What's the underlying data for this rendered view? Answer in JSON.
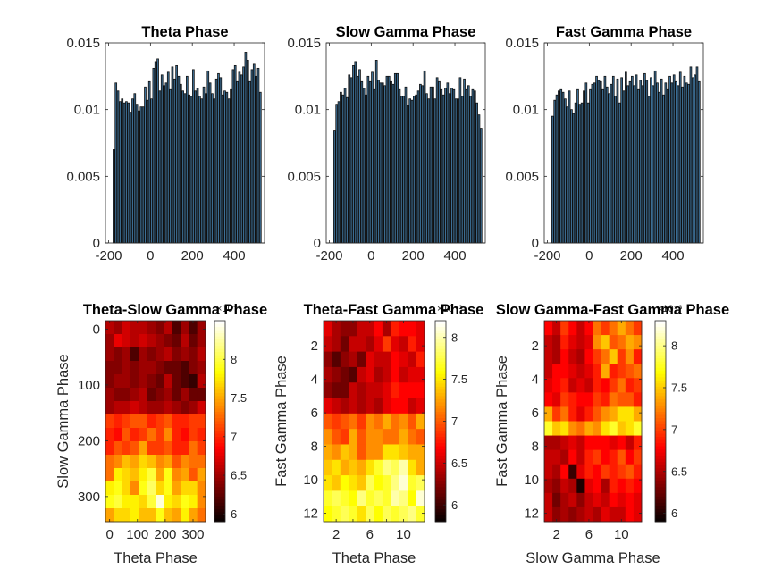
{
  "figure": {
    "background": "#ffffff"
  },
  "chart_data": [
    {
      "type": "bar",
      "title": "Theta Phase",
      "xlabel": "",
      "ylabel": "",
      "xlim": [
        -215,
        545
      ],
      "ylim": [
        0,
        0.015
      ],
      "xticks": [
        -200,
        0,
        200,
        400
      ],
      "yticks": [
        0,
        0.005,
        0.01,
        0.015
      ],
      "xtick_labels": [
        "-200",
        "0",
        "200",
        "400"
      ],
      "ytick_labels": [
        "0",
        "0.005",
        "0.01",
        "0.015"
      ],
      "bar_color": "#1f3f5f",
      "bar_edge": "#111111",
      "x": [
        -175,
        -165,
        -155,
        -145,
        -135,
        -125,
        -115,
        -105,
        -95,
        -85,
        -75,
        -65,
        -55,
        -45,
        -35,
        -25,
        -15,
        -5,
        5,
        15,
        25,
        35,
        45,
        55,
        65,
        75,
        85,
        95,
        105,
        115,
        125,
        135,
        145,
        155,
        165,
        175,
        185,
        195,
        205,
        215,
        225,
        235,
        245,
        255,
        265,
        275,
        285,
        295,
        305,
        315,
        325,
        335,
        345,
        355,
        365,
        375,
        385,
        395,
        405,
        415,
        425,
        435,
        445,
        455,
        465,
        475,
        485,
        495,
        505,
        515,
        525
      ],
      "values": [
        0.007,
        0.012,
        0.0114,
        0.0106,
        0.0108,
        0.0105,
        0.0106,
        0.0105,
        0.0098,
        0.0108,
        0.0112,
        0.0104,
        0.0099,
        0.0102,
        0.0102,
        0.0117,
        0.0107,
        0.0121,
        0.0108,
        0.0131,
        0.0136,
        0.0138,
        0.0114,
        0.0126,
        0.0118,
        0.012,
        0.0128,
        0.0115,
        0.0132,
        0.0123,
        0.0133,
        0.0125,
        0.0119,
        0.0114,
        0.0112,
        0.0125,
        0.0111,
        0.011,
        0.013,
        0.0114,
        0.0116,
        0.011,
        0.0108,
        0.0117,
        0.0112,
        0.0129,
        0.012,
        0.0112,
        0.0108,
        0.0123,
        0.0127,
        0.0124,
        0.0111,
        0.0114,
        0.0113,
        0.0108,
        0.0115,
        0.013,
        0.0133,
        0.0121,
        0.0128,
        0.0126,
        0.0132,
        0.0143,
        0.0137,
        0.0121,
        0.013,
        0.0134,
        0.0125,
        0.0131,
        0.0113
      ]
    },
    {
      "type": "bar",
      "title": "Slow Gamma Phase",
      "xlabel": "",
      "ylabel": "",
      "xlim": [
        -215,
        545
      ],
      "ylim": [
        0,
        0.015
      ],
      "xticks": [
        -200,
        0,
        200,
        400
      ],
      "yticks": [
        0,
        0.005,
        0.01,
        0.015
      ],
      "xtick_labels": [
        "-200",
        "0",
        "200",
        "400"
      ],
      "ytick_labels": [
        "0",
        "0.005",
        "0.01",
        "0.015"
      ],
      "bar_color": "#1f3f5f",
      "bar_edge": "#111111",
      "x": [
        -175,
        -165,
        -155,
        -145,
        -135,
        -125,
        -115,
        -105,
        -95,
        -85,
        -75,
        -65,
        -55,
        -45,
        -35,
        -25,
        -15,
        -5,
        5,
        15,
        25,
        35,
        45,
        55,
        65,
        75,
        85,
        95,
        105,
        115,
        125,
        135,
        145,
        155,
        165,
        175,
        185,
        195,
        205,
        215,
        225,
        235,
        245,
        255,
        265,
        275,
        285,
        295,
        305,
        315,
        325,
        335,
        345,
        355,
        365,
        375,
        385,
        395,
        405,
        415,
        425,
        435,
        445,
        455,
        465,
        475,
        485,
        495,
        505,
        515,
        525
      ],
      "values": [
        0.0084,
        0.0104,
        0.0106,
        0.0113,
        0.0111,
        0.0116,
        0.0109,
        0.0126,
        0.0124,
        0.0133,
        0.0136,
        0.0125,
        0.013,
        0.0121,
        0.0116,
        0.0111,
        0.0125,
        0.0121,
        0.0128,
        0.0115,
        0.0137,
        0.0122,
        0.012,
        0.012,
        0.0118,
        0.0125,
        0.0125,
        0.0121,
        0.0119,
        0.0127,
        0.0127,
        0.0115,
        0.011,
        0.011,
        0.0117,
        0.0103,
        0.0108,
        0.0107,
        0.011,
        0.0111,
        0.0114,
        0.0119,
        0.0118,
        0.0129,
        0.0112,
        0.0108,
        0.0117,
        0.0117,
        0.0108,
        0.0124,
        0.0121,
        0.0115,
        0.0111,
        0.0116,
        0.012,
        0.0112,
        0.0116,
        0.0115,
        0.0108,
        0.0108,
        0.0124,
        0.011,
        0.0123,
        0.0115,
        0.0118,
        0.011,
        0.0115,
        0.0114,
        0.0105,
        0.0096,
        0.0086
      ]
    },
    {
      "type": "bar",
      "title": "Fast Gamma Phase",
      "xlabel": "",
      "ylabel": "",
      "xlim": [
        -215,
        545
      ],
      "ylim": [
        0,
        0.015
      ],
      "xticks": [
        -200,
        0,
        200,
        400
      ],
      "yticks": [
        0,
        0.005,
        0.01,
        0.015
      ],
      "xtick_labels": [
        "-200",
        "0",
        "200",
        "400"
      ],
      "ytick_labels": [
        "0",
        "0.005",
        "0.01",
        "0.015"
      ],
      "bar_color": "#1f3f5f",
      "bar_edge": "#111111",
      "x": [
        -175,
        -165,
        -155,
        -145,
        -135,
        -125,
        -115,
        -105,
        -95,
        -85,
        -75,
        -65,
        -55,
        -45,
        -35,
        -25,
        -15,
        -5,
        5,
        15,
        25,
        35,
        45,
        55,
        65,
        75,
        85,
        95,
        105,
        115,
        125,
        135,
        145,
        155,
        165,
        175,
        185,
        195,
        205,
        215,
        225,
        235,
        245,
        255,
        265,
        275,
        285,
        295,
        305,
        315,
        325,
        335,
        345,
        355,
        365,
        375,
        385,
        395,
        405,
        415,
        425,
        435,
        445,
        455,
        465,
        475,
        485,
        495,
        505,
        515,
        525
      ],
      "values": [
        0.0095,
        0.0107,
        0.0111,
        0.0114,
        0.0115,
        0.0113,
        0.0108,
        0.0102,
        0.0114,
        0.01,
        0.0097,
        0.0105,
        0.0115,
        0.0104,
        0.0105,
        0.0114,
        0.012,
        0.0105,
        0.0115,
        0.0119,
        0.012,
        0.0125,
        0.0122,
        0.0121,
        0.0115,
        0.0125,
        0.0117,
        0.0112,
        0.0119,
        0.0125,
        0.011,
        0.0123,
        0.0105,
        0.0124,
        0.0114,
        0.0128,
        0.0118,
        0.0121,
        0.0125,
        0.0118,
        0.0126,
        0.0115,
        0.0122,
        0.0118,
        0.0127,
        0.0122,
        0.011,
        0.0124,
        0.0118,
        0.0129,
        0.012,
        0.0113,
        0.0123,
        0.0111,
        0.012,
        0.0115,
        0.0125,
        0.012,
        0.0126,
        0.0121,
        0.0118,
        0.0128,
        0.0117,
        0.0125,
        0.012,
        0.0119,
        0.0132,
        0.0124,
        0.0126,
        0.0132,
        0.0121
      ]
    },
    {
      "type": "heatmap",
      "title": "Theta-Slow Gamma Phase",
      "xlabel": "Theta Phase",
      "ylabel": "Slow Gamma Phase",
      "xlim": [
        -15,
        345
      ],
      "ylim": [
        -15,
        345
      ],
      "xticks": [
        0,
        100,
        200,
        300
      ],
      "yticks": [
        0,
        100,
        200,
        300
      ],
      "xtick_labels": [
        "0",
        "100",
        "200",
        "300"
      ],
      "ytick_labels": [
        "0",
        "100",
        "200",
        "300"
      ],
      "y_direction": "down",
      "colormap": "hot",
      "clim": [
        5.9,
        8.5
      ],
      "colorbar_ticks": [
        6,
        6.5,
        7,
        7.5,
        8
      ],
      "colorbar_labels": [
        "6",
        "6.5",
        "7",
        "7.5",
        "8"
      ],
      "colorbar_multiplier": "×10⁻³",
      "matrix": [
        [
          6.6,
          6.5,
          6.7,
          6.6,
          6.6,
          6.5,
          6.4,
          6.6,
          6.2,
          6.5,
          6.2,
          6.5
        ],
        [
          6.5,
          6.8,
          6.7,
          6.6,
          6.7,
          6.6,
          6.5,
          6.4,
          6.3,
          6.6,
          6.3,
          6.5
        ],
        [
          6.5,
          6.4,
          6.5,
          6.2,
          6.5,
          6.4,
          6.5,
          6.6,
          6.4,
          6.5,
          6.4,
          6.6
        ],
        [
          6.4,
          6.4,
          6.5,
          6.4,
          6.5,
          6.5,
          6.4,
          6.3,
          6.3,
          6.2,
          6.4,
          6.5
        ],
        [
          6.4,
          6.5,
          6.5,
          6.4,
          6.5,
          6.4,
          6.3,
          6.6,
          6.3,
          6.2,
          6.1,
          6.6
        ],
        [
          6.5,
          6.4,
          6.4,
          6.5,
          6.6,
          6.3,
          6.4,
          6.5,
          6.3,
          6.5,
          6.3,
          6.3
        ],
        [
          6.5,
          6.6,
          6.6,
          6.7,
          6.6,
          6.5,
          6.5,
          6.6,
          6.5,
          6.4,
          6.5,
          6.7
        ],
        [
          7.1,
          7.0,
          7.1,
          7.2,
          7.2,
          7.0,
          7.1,
          7.2,
          7.0,
          7.0,
          7.1,
          7.1
        ],
        [
          7.0,
          6.9,
          7.2,
          7.0,
          7.1,
          7.3,
          7.1,
          7.4,
          7.0,
          6.9,
          7.1,
          7.0
        ],
        [
          7.0,
          7.2,
          7.1,
          7.2,
          7.5,
          7.1,
          7.1,
          7.2,
          7.0,
          7.0,
          7.3,
          7.1
        ],
        [
          7.3,
          7.4,
          7.6,
          7.5,
          7.7,
          7.6,
          7.4,
          7.5,
          7.2,
          7.4,
          7.3,
          7.3
        ],
        [
          7.3,
          7.8,
          7.7,
          7.6,
          7.8,
          8.0,
          7.5,
          7.9,
          7.4,
          7.5,
          7.2,
          7.5
        ],
        [
          7.8,
          7.9,
          7.7,
          7.4,
          7.9,
          8.1,
          7.7,
          7.9,
          7.5,
          7.7,
          7.7,
          7.4
        ],
        [
          7.9,
          8.0,
          7.8,
          7.8,
          7.7,
          8.0,
          8.4,
          7.8,
          7.7,
          7.9,
          7.8,
          7.4
        ],
        [
          7.5,
          7.7,
          7.7,
          7.8,
          7.6,
          7.6,
          7.9,
          7.6,
          7.5,
          7.8,
          7.5,
          7.3
        ]
      ]
    },
    {
      "type": "heatmap",
      "title": "Theta-Fast Gamma Phase",
      "xlabel": "Theta Phase",
      "ylabel": "Fast Gamma Phase",
      "xlim": [
        0.5,
        12.5
      ],
      "ylim": [
        0.5,
        12.5
      ],
      "xticks": [
        2,
        4,
        6,
        8,
        10
      ],
      "yticks": [
        2,
        4,
        6,
        8,
        10,
        12
      ],
      "xtick_labels": [
        "2",
        "",
        "6",
        "",
        "10"
      ],
      "ytick_labels": [
        "2",
        "4",
        "6",
        "8",
        "10",
        "12"
      ],
      "y_direction": "down",
      "colormap": "hot",
      "clim": [
        5.8,
        8.2
      ],
      "colorbar_ticks": [
        6,
        6.5,
        7,
        7.5,
        8
      ],
      "colorbar_labels": [
        "6",
        "6.5",
        "7",
        "7.5",
        "8"
      ],
      "colorbar_multiplier": "×10⁻³",
      "matrix": [
        [
          6.6,
          6.4,
          6.3,
          6.3,
          6.5,
          6.5,
          6.7,
          6.4,
          6.8,
          6.7,
          6.7,
          6.6
        ],
        [
          6.5,
          6.4,
          6.2,
          6.5,
          6.5,
          6.4,
          6.6,
          6.9,
          6.6,
          6.5,
          6.8,
          6.6
        ],
        [
          6.3,
          6.1,
          6.3,
          6.4,
          6.2,
          6.6,
          6.5,
          6.5,
          6.7,
          6.6,
          6.5,
          6.8
        ],
        [
          6.4,
          6.3,
          6.2,
          6.1,
          6.5,
          6.6,
          6.4,
          6.5,
          6.7,
          6.5,
          6.6,
          6.6
        ],
        [
          6.3,
          6.2,
          6.2,
          6.5,
          6.4,
          6.5,
          6.5,
          6.6,
          6.8,
          6.7,
          6.7,
          6.7
        ],
        [
          6.6,
          6.5,
          6.4,
          6.5,
          6.4,
          6.5,
          6.4,
          6.6,
          6.7,
          6.7,
          6.5,
          6.6
        ],
        [
          7.0,
          6.9,
          7.0,
          7.1,
          6.9,
          7.2,
          7.1,
          7.3,
          7.1,
          7.2,
          7.0,
          7.3
        ],
        [
          7.2,
          7.0,
          6.9,
          7.3,
          7.0,
          7.2,
          7.2,
          7.1,
          7.1,
          7.3,
          7.1,
          7.0
        ],
        [
          7.3,
          7.2,
          7.4,
          7.3,
          7.0,
          7.2,
          7.2,
          7.5,
          7.5,
          7.4,
          7.3,
          7.3
        ],
        [
          7.4,
          7.5,
          7.3,
          7.4,
          7.3,
          7.5,
          7.7,
          7.9,
          7.8,
          8.0,
          7.5,
          7.3
        ],
        [
          7.5,
          7.4,
          7.6,
          7.5,
          7.4,
          7.8,
          7.6,
          7.7,
          7.9,
          8.1,
          7.7,
          7.8
        ],
        [
          7.7,
          7.8,
          7.7,
          7.6,
          7.9,
          7.7,
          7.8,
          7.7,
          8.0,
          7.9,
          7.6,
          8.1
        ],
        [
          7.6,
          7.7,
          7.8,
          7.7,
          7.5,
          7.8,
          7.6,
          7.8,
          7.7,
          7.8,
          7.9,
          7.7
        ]
      ]
    },
    {
      "type": "heatmap",
      "title": "Slow Gamma-Fast Gamma Phase",
      "xlabel": "Slow Gamma Phase",
      "ylabel": "Fast Gamma Phase",
      "xlim": [
        0.5,
        12.5
      ],
      "ylim": [
        0.5,
        12.5
      ],
      "xticks": [
        2,
        6,
        10
      ],
      "yticks": [
        2,
        4,
        6,
        8,
        10,
        12
      ],
      "xtick_labels": [
        "2",
        "6",
        "10"
      ],
      "ytick_labels": [
        "2",
        "4",
        "6",
        "8",
        "10",
        "12"
      ],
      "y_direction": "down",
      "colormap": "hot",
      "clim": [
        5.9,
        8.3
      ],
      "colorbar_ticks": [
        6,
        6.5,
        7,
        7.5,
        8
      ],
      "colorbar_labels": [
        "6",
        "6.5",
        "7",
        "7.5",
        "8"
      ],
      "colorbar_multiplier": "×10⁻³",
      "matrix": [
        [
          6.8,
          6.6,
          7.0,
          6.8,
          6.6,
          6.8,
          7.2,
          7.0,
          7.2,
          7.4,
          7.2,
          7.0
        ],
        [
          6.6,
          6.5,
          6.9,
          6.7,
          6.6,
          6.7,
          7.3,
          7.5,
          7.1,
          7.2,
          7.4,
          7.3
        ],
        [
          6.6,
          6.5,
          6.8,
          6.6,
          6.5,
          6.8,
          7.0,
          7.2,
          7.5,
          7.0,
          7.3,
          6.9
        ],
        [
          6.6,
          6.8,
          6.8,
          6.7,
          6.6,
          6.7,
          6.9,
          7.4,
          6.9,
          7.0,
          7.1,
          7.2
        ],
        [
          6.7,
          6.8,
          6.9,
          6.6,
          6.7,
          6.6,
          6.9,
          6.8,
          7.0,
          7.2,
          6.9,
          7.0
        ],
        [
          6.8,
          6.7,
          7.0,
          6.9,
          6.8,
          6.8,
          7.0,
          6.9,
          7.2,
          7.1,
          7.1,
          6.9
        ],
        [
          7.4,
          7.0,
          7.2,
          6.9,
          6.7,
          6.9,
          7.1,
          7.3,
          7.4,
          7.6,
          7.6,
          7.4
        ],
        [
          7.8,
          7.5,
          7.6,
          7.3,
          7.2,
          7.4,
          7.3,
          7.6,
          7.8,
          7.5,
          7.6,
          7.8
        ],
        [
          6.5,
          6.5,
          6.6,
          6.7,
          6.6,
          6.8,
          6.8,
          6.8,
          6.7,
          6.8,
          6.6,
          6.9
        ],
        [
          6.6,
          6.6,
          6.5,
          6.8,
          6.6,
          6.9,
          7.0,
          6.8,
          6.9,
          7.1,
          6.8,
          7.0
        ],
        [
          6.6,
          6.5,
          6.8,
          6.1,
          6.7,
          6.9,
          6.8,
          7.0,
          6.9,
          7.0,
          7.1,
          6.9
        ],
        [
          6.5,
          6.4,
          6.6,
          6.5,
          6.0,
          6.7,
          6.8,
          6.5,
          6.9,
          6.8,
          6.9,
          6.8
        ],
        [
          6.6,
          6.3,
          6.5,
          6.6,
          6.4,
          6.6,
          6.7,
          6.6,
          6.8,
          6.7,
          6.8,
          6.7
        ],
        [
          6.6,
          6.4,
          6.5,
          6.4,
          6.5,
          6.6,
          6.5,
          6.7,
          6.6,
          6.6,
          6.8,
          6.7
        ]
      ]
    }
  ]
}
